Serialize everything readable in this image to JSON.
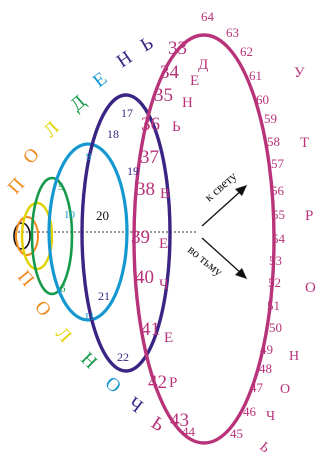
{
  "colors": {
    "black": "#111111",
    "orange": "#f08a1c",
    "yellow": "#e2d200",
    "green": "#159a49",
    "light_blue": "#1598d0",
    "dark_blue": "#3a2584",
    "magenta": "#b8337a"
  },
  "word_top": [
    "П",
    "О",
    "Л",
    "Д",
    "Е",
    "Н",
    "Ь"
  ],
  "word_top_colors": [
    "orange",
    "orange",
    "yellow",
    "green",
    "light_blue",
    "dark_blue",
    "dark_blue"
  ],
  "word_bottom": [
    "П",
    "О",
    "Л",
    "Н",
    "О",
    "Ч",
    "Ь"
  ],
  "word_bottom_colors": [
    "orange",
    "orange",
    "yellow",
    "green",
    "light_blue",
    "dark_blue",
    "magenta"
  ],
  "green_numbers": [
    "5",
    "6"
  ],
  "light_blue_numbers": [
    "9",
    "10",
    "11"
  ],
  "dark_blue_numbers": [
    "17",
    "18",
    "19",
    "20",
    "21",
    "22"
  ],
  "magenta_numbers_big": [
    "33",
    "34",
    "35",
    "36",
    "37",
    "38",
    "39",
    "40",
    "41",
    "42",
    "43",
    "44"
  ],
  "magenta_letters_big": [
    "Д",
    "Е",
    "Н",
    "Ь",
    "В",
    "Е",
    "Ч",
    "Е",
    "Р"
  ],
  "magenta_numbers_small": [
    "45",
    "46",
    "47",
    "48",
    "49",
    "50",
    "51",
    "52",
    "53",
    "54",
    "55",
    "56",
    "57",
    "58",
    "59",
    "60",
    "61",
    "62",
    "63",
    "64"
  ],
  "magenta_letters_small": [
    "Н",
    "О",
    "Ч",
    "Ь"
  ],
  "side_word": [
    "У",
    "Т",
    "Р",
    "О"
  ],
  "arrow_up_label": "к свету",
  "arrow_down_label": "во тьму"
}
